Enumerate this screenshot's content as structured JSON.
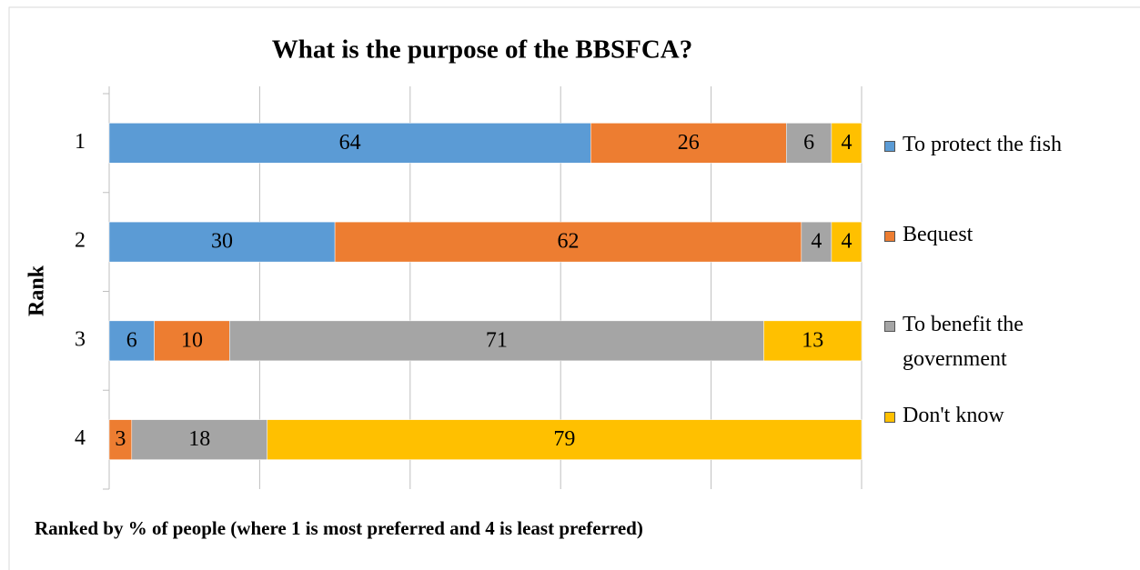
{
  "chart_data": {
    "type": "stacked_barh",
    "title": "What is the purpose of the BBSFCA?",
    "ylabel": "Rank",
    "xlabel": "Ranked by % of people (where 1 is most preferred and 4 is least preferred)",
    "categories": [
      "1",
      "2",
      "3",
      "4"
    ],
    "series": [
      {
        "name": "To protect the fish",
        "color": "#5b9bd5",
        "values": [
          64,
          30,
          6,
          null
        ]
      },
      {
        "name": "Bequest",
        "color": "#ed7d31",
        "values": [
          26,
          62,
          10,
          3
        ]
      },
      {
        "name": "To benefit the government",
        "color": "#a5a5a5",
        "values": [
          6,
          4,
          71,
          18
        ]
      },
      {
        "name": "Don't know",
        "color": "#ffc000",
        "values": [
          4,
          4,
          13,
          79
        ]
      }
    ],
    "xlim": [
      0,
      100
    ],
    "xticks": [
      0,
      20,
      40,
      60,
      80,
      100
    ],
    "grid": true,
    "legend": "right"
  }
}
